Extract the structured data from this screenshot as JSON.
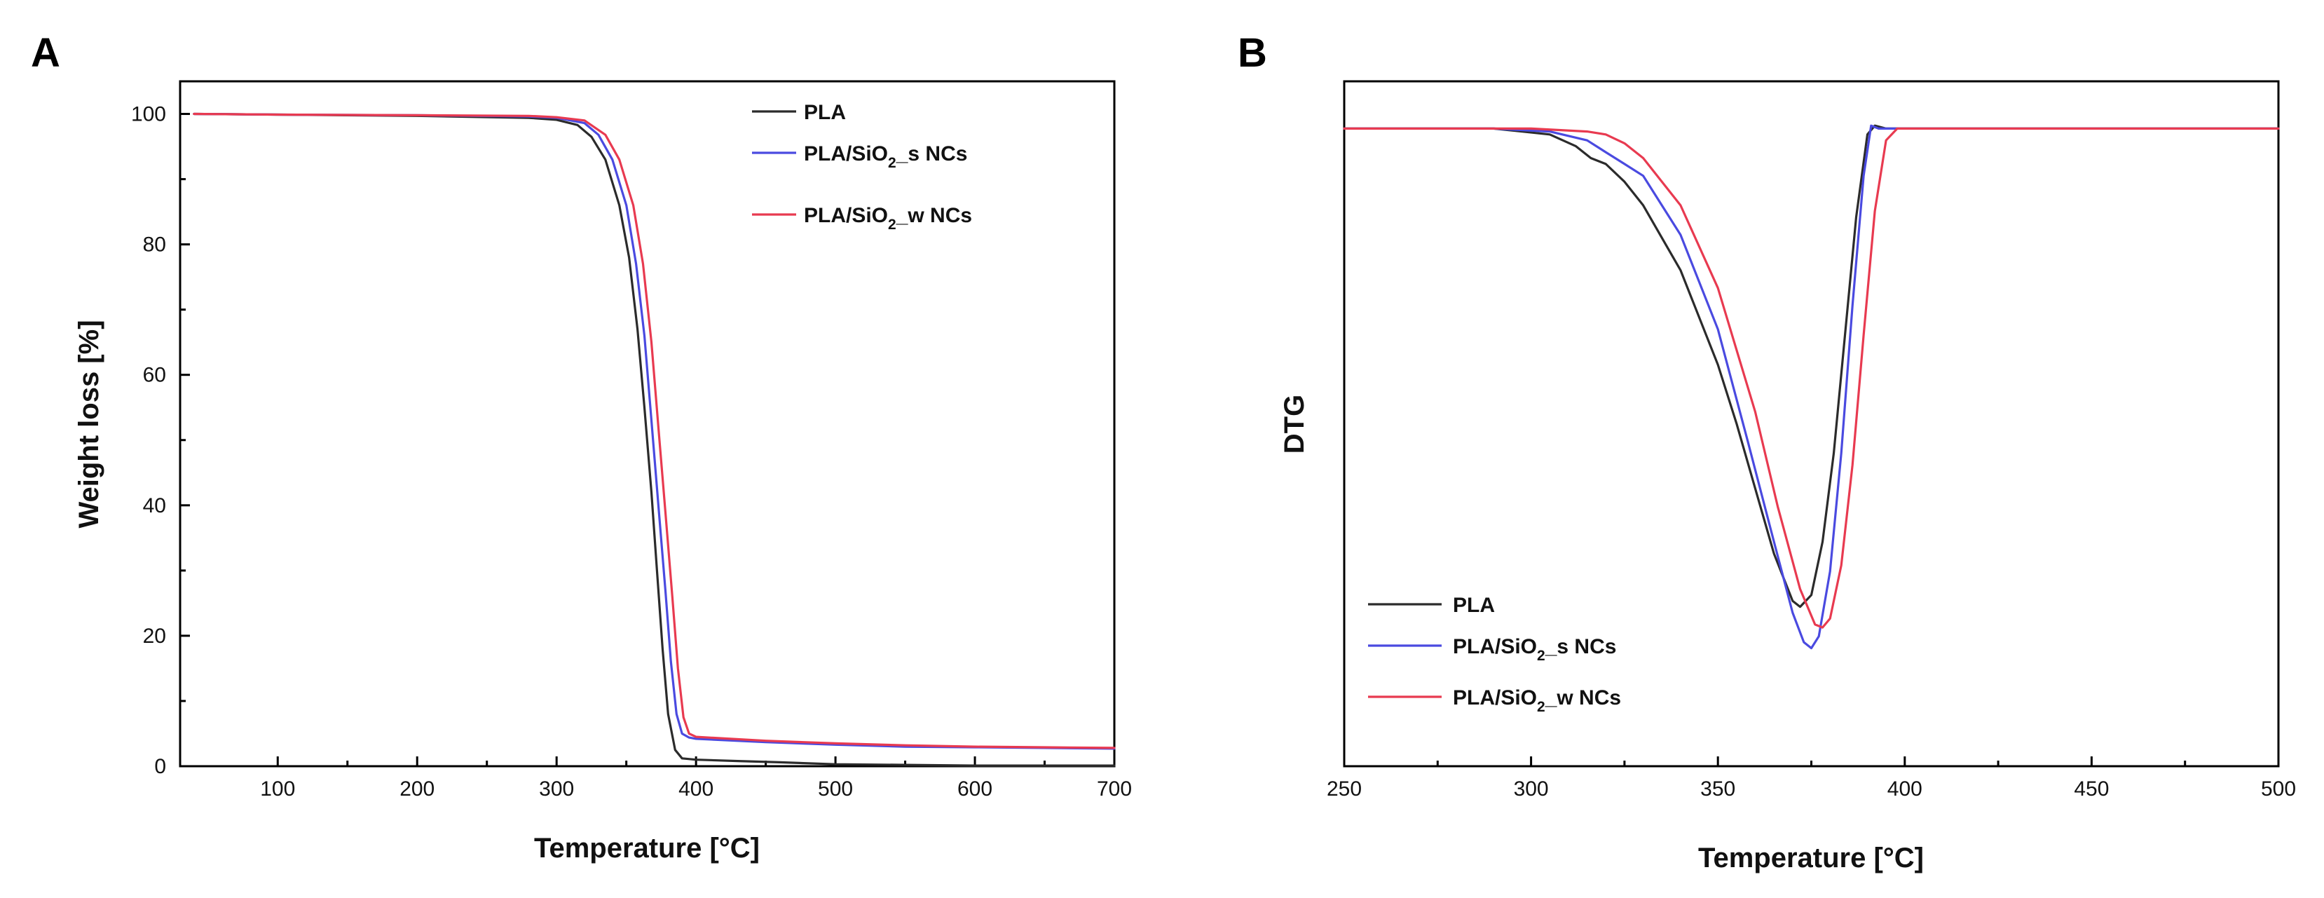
{
  "chart_data": [
    {
      "panel": "A",
      "type": "line",
      "xlabel": "Temperature [°C]",
      "ylabel": "Weight loss [%]",
      "xlim": [
        30,
        700
      ],
      "ylim": [
        0,
        105
      ],
      "xticks": [
        100,
        200,
        300,
        400,
        500,
        600,
        700
      ],
      "yticks": [
        0,
        20,
        40,
        60,
        80,
        100
      ],
      "legend_position": "top-right",
      "series": [
        {
          "name": "PLA",
          "color": "#2b2b2b",
          "x": [
            40,
            100,
            200,
            280,
            300,
            315,
            325,
            335,
            345,
            352,
            358,
            363,
            368,
            372,
            376,
            380,
            385,
            390,
            400,
            430,
            460,
            500,
            550,
            600,
            650,
            700
          ],
          "y": [
            100,
            99.9,
            99.7,
            99.4,
            99.1,
            98.3,
            96.5,
            93,
            86,
            78,
            67,
            55,
            42,
            30,
            18,
            8,
            2.5,
            1.2,
            1.0,
            0.8,
            0.6,
            0.3,
            0.2,
            0.1,
            0.1,
            0.1
          ]
        },
        {
          "name": "PLA/SiO2_s NCs",
          "color": "#4a4ae0",
          "x": [
            40,
            100,
            200,
            280,
            300,
            320,
            330,
            340,
            350,
            357,
            363,
            368,
            373,
            378,
            382,
            386,
            390,
            395,
            400,
            450,
            500,
            550,
            600,
            650,
            700
          ],
          "y": [
            100,
            99.9,
            99.8,
            99.6,
            99.4,
            98.6,
            96.8,
            93,
            86,
            77,
            66,
            53,
            40,
            27,
            16,
            8,
            5,
            4.4,
            4.2,
            3.7,
            3.3,
            3.0,
            2.9,
            2.8,
            2.7
          ],
          "legend_label": "PLA/SiO",
          "legend_sub": "2",
          "legend_suffix": "_s NCs"
        },
        {
          "name": "PLA/SiO2_w NCs",
          "color": "#e83a50",
          "x": [
            40,
            100,
            200,
            280,
            300,
            320,
            335,
            345,
            355,
            362,
            368,
            373,
            378,
            383,
            387,
            391,
            395,
            400,
            450,
            500,
            550,
            600,
            650,
            700
          ],
          "y": [
            100,
            99.9,
            99.8,
            99.7,
            99.5,
            99.0,
            96.8,
            93,
            86,
            77,
            65,
            52,
            39,
            26,
            15,
            7.5,
            5,
            4.5,
            3.9,
            3.5,
            3.2,
            3.0,
            2.9,
            2.8
          ],
          "legend_label": "PLA/SiO",
          "legend_sub": "2",
          "legend_suffix": "_w NCs"
        }
      ]
    },
    {
      "panel": "B",
      "type": "line",
      "xlabel": "Temperature [°C]",
      "ylabel": "DTG",
      "xlim": [
        250,
        500
      ],
      "ylim": [
        -1.08,
        0.08
      ],
      "xticks": [
        250,
        300,
        350,
        400,
        450,
        500
      ],
      "yticks": [],
      "legend_position": "bottom-left",
      "series": [
        {
          "name": "PLA",
          "color": "#2b2b2b",
          "x": [
            250,
            290,
            305,
            312,
            316,
            320,
            325,
            330,
            340,
            350,
            355,
            360,
            365,
            370,
            372,
            375,
            378,
            381,
            384,
            387,
            390,
            392,
            395,
            400,
            450,
            500
          ],
          "y": [
            0,
            0,
            -0.01,
            -0.03,
            -0.05,
            -0.06,
            -0.09,
            -0.13,
            -0.24,
            -0.4,
            -0.5,
            -0.61,
            -0.72,
            -0.8,
            -0.81,
            -0.79,
            -0.7,
            -0.55,
            -0.35,
            -0.15,
            -0.01,
            0.005,
            0,
            0,
            0,
            0
          ]
        },
        {
          "name": "PLA/SiO2_s NCs",
          "color": "#4a4ae0",
          "x": [
            250,
            290,
            305,
            315,
            320,
            325,
            330,
            340,
            350,
            358,
            365,
            370,
            373,
            375,
            377,
            380,
            383,
            386,
            389,
            391,
            393,
            396,
            400,
            450,
            500
          ],
          "y": [
            0,
            0,
            -0.005,
            -0.02,
            -0.04,
            -0.06,
            -0.08,
            -0.18,
            -0.34,
            -0.53,
            -0.7,
            -0.82,
            -0.87,
            -0.88,
            -0.86,
            -0.75,
            -0.55,
            -0.3,
            -0.08,
            0.005,
            0,
            0,
            0,
            0,
            0
          ],
          "legend_label": "PLA/SiO",
          "legend_sub": "2",
          "legend_suffix": "_s NCs"
        },
        {
          "name": "PLA/SiO2_w NCs",
          "color": "#e83a50",
          "x": [
            250,
            300,
            315,
            320,
            325,
            330,
            340,
            350,
            360,
            366,
            372,
            376,
            378,
            380,
            383,
            386,
            389,
            392,
            395,
            398,
            400,
            450,
            500
          ],
          "y": [
            0,
            0,
            -0.005,
            -0.01,
            -0.025,
            -0.05,
            -0.13,
            -0.27,
            -0.48,
            -0.64,
            -0.78,
            -0.84,
            -0.845,
            -0.83,
            -0.74,
            -0.57,
            -0.35,
            -0.14,
            -0.02,
            0,
            0,
            0,
            0
          ],
          "legend_label": "PLA/SiO",
          "legend_sub": "2",
          "legend_suffix": "_w NCs"
        }
      ]
    }
  ]
}
